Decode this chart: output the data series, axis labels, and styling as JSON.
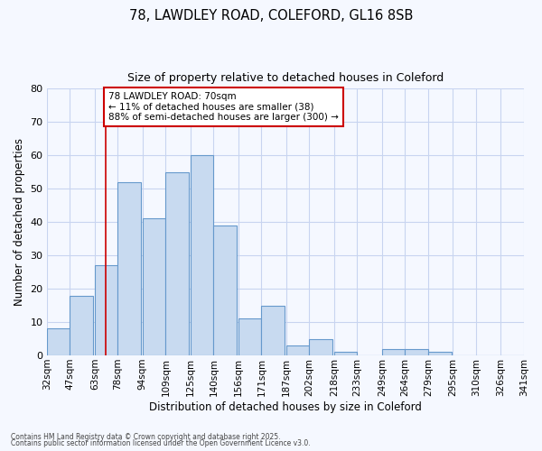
{
  "title1": "78, LAWDLEY ROAD, COLEFORD, GL16 8SB",
  "title2": "Size of property relative to detached houses in Coleford",
  "xlabel": "Distribution of detached houses by size in Coleford",
  "ylabel": "Number of detached properties",
  "bar_color": "#c8daf0",
  "bar_edge_color": "#6699cc",
  "background_color": "#f5f8ff",
  "grid_color": "#c8d4f0",
  "bin_starts": [
    32,
    47,
    63,
    78,
    94,
    109,
    125,
    140,
    156,
    171,
    187,
    202,
    218,
    233,
    249,
    264,
    279,
    295,
    310,
    326
  ],
  "bin_labels": [
    "32sqm",
    "47sqm",
    "63sqm",
    "78sqm",
    "94sqm",
    "109sqm",
    "125sqm",
    "140sqm",
    "156sqm",
    "171sqm",
    "187sqm",
    "202sqm",
    "218sqm",
    "233sqm",
    "249sqm",
    "264sqm",
    "279sqm",
    "295sqm",
    "310sqm",
    "326sqm",
    "341sqm"
  ],
  "values": [
    8,
    18,
    27,
    52,
    41,
    55,
    60,
    39,
    11,
    15,
    3,
    5,
    1,
    0,
    2,
    2,
    1,
    0,
    0,
    0
  ],
  "bin_width": 15,
  "ylim": [
    0,
    80
  ],
  "yticks": [
    0,
    10,
    20,
    30,
    40,
    50,
    60,
    70,
    80
  ],
  "property_sqm": 70,
  "red_line_color": "#cc0000",
  "annotation_line1": "78 LAWDLEY ROAD: 70sqm",
  "annotation_line2": "← 11% of detached houses are smaller (38)",
  "annotation_line3": "88% of semi-detached houses are larger (300) →",
  "annotation_box_color": "#ffffff",
  "annotation_box_edge": "#cc0000",
  "footnote1": "Contains HM Land Registry data © Crown copyright and database right 2025.",
  "footnote2": "Contains public sector information licensed under the Open Government Licence v3.0."
}
